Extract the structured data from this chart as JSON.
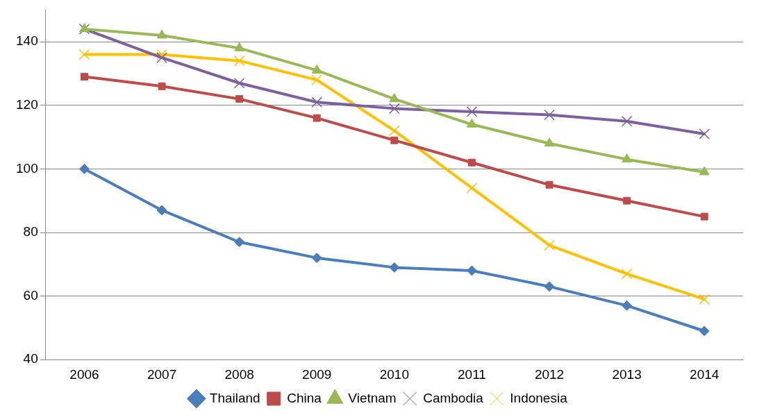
{
  "chart_data": {
    "type": "line",
    "categories": [
      "2006",
      "2007",
      "2008",
      "2009",
      "2010",
      "2011",
      "2012",
      "2013",
      "2014"
    ],
    "series": [
      {
        "name": "Thailand",
        "color": "#4a7ebb",
        "marker": "diamond",
        "values": [
          100,
          87,
          77,
          72,
          69,
          68,
          63,
          57,
          49
        ]
      },
      {
        "name": "China",
        "color": "#be4b48",
        "marker": "square",
        "values": [
          129,
          126,
          122,
          116,
          109,
          102,
          95,
          90,
          85
        ]
      },
      {
        "name": "Vietnam",
        "color": "#98b954",
        "marker": "triangle",
        "values": [
          144,
          142,
          138,
          131,
          122,
          114,
          108,
          103,
          99
        ]
      },
      {
        "name": "Cambodia",
        "color": "#7d60a0",
        "marker": "cross",
        "values": [
          144,
          135,
          127,
          121,
          119,
          118,
          117,
          115,
          111
        ]
      },
      {
        "name": "Indonesia",
        "color": "#ffc000",
        "marker": "cross",
        "values": [
          136,
          136,
          134,
          128,
          112,
          94,
          76,
          67,
          59
        ]
      }
    ],
    "ylim": [
      40,
      150
    ],
    "yticks": [
      40,
      60,
      80,
      100,
      120,
      140
    ],
    "grid": "y",
    "legend": "bottom",
    "line_style": "solid"
  }
}
